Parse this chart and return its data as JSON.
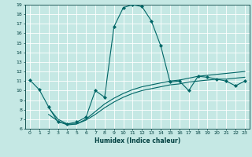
{
  "xlabel": "Humidex (Indice chaleur)",
  "xlim": [
    -0.5,
    23.5
  ],
  "ylim": [
    6,
    19
  ],
  "yticks": [
    6,
    7,
    8,
    9,
    10,
    11,
    12,
    13,
    14,
    15,
    16,
    17,
    18,
    19
  ],
  "xticks": [
    0,
    1,
    2,
    3,
    4,
    5,
    6,
    7,
    8,
    9,
    10,
    11,
    12,
    13,
    14,
    15,
    16,
    17,
    18,
    19,
    20,
    21,
    22,
    23
  ],
  "bg_color": "#c5e8e4",
  "line_color": "#006666",
  "grid_color": "#ffffff",
  "line1_x": [
    0,
    1,
    2,
    3,
    4,
    5,
    6,
    7,
    8,
    9,
    10,
    11,
    12,
    13,
    14,
    15,
    16,
    17,
    18,
    19,
    20,
    21,
    22,
    23
  ],
  "line1_y": [
    11.1,
    10.1,
    8.3,
    6.7,
    6.5,
    6.7,
    7.2,
    10.0,
    9.3,
    16.7,
    18.7,
    19.0,
    18.8,
    17.3,
    14.7,
    10.9,
    11.0,
    10.0,
    11.5,
    11.4,
    11.2,
    11.0,
    10.5,
    11.0
  ],
  "line2_x": [
    2,
    3,
    4,
    5,
    6,
    7,
    8,
    9,
    10,
    11,
    12,
    13,
    14,
    15,
    16,
    17,
    18,
    19,
    20,
    21,
    22,
    23
  ],
  "line2_y": [
    8.2,
    7.0,
    6.5,
    6.5,
    7.0,
    7.8,
    8.6,
    9.2,
    9.7,
    10.1,
    10.4,
    10.6,
    10.8,
    11.0,
    11.1,
    11.3,
    11.5,
    11.6,
    11.7,
    11.8,
    11.9,
    12.0
  ],
  "line3_x": [
    2,
    3,
    4,
    5,
    6,
    7,
    8,
    9,
    10,
    11,
    12,
    13,
    14,
    15,
    16,
    17,
    18,
    19,
    20,
    21,
    22,
    23
  ],
  "line3_y": [
    7.5,
    6.8,
    6.4,
    6.5,
    6.9,
    7.5,
    8.2,
    8.8,
    9.3,
    9.7,
    10.0,
    10.2,
    10.4,
    10.6,
    10.7,
    10.9,
    11.0,
    11.1,
    11.2,
    11.2,
    11.3,
    11.4
  ]
}
